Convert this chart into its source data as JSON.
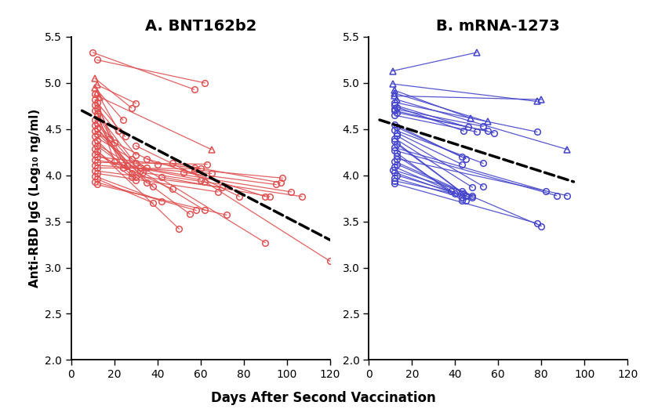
{
  "title_A": "A. BNT162b2",
  "title_B": "B. mRNA-1273",
  "xlabel": "Days After Second Vaccination",
  "ylabel": "Anti-RBD IgG (Log₁₀ ng/ml)",
  "xlim": [
    0,
    120
  ],
  "ylim": [
    2.0,
    5.5
  ],
  "yticks": [
    2.0,
    2.5,
    3.0,
    3.5,
    4.0,
    4.5,
    5.0,
    5.5
  ],
  "xticks": [
    0,
    20,
    40,
    60,
    80,
    100,
    120
  ],
  "color_A": "#E05050",
  "color_B": "#4444CC",
  "dashed_color": "black",
  "panel_A_subjects": [
    {
      "x": [
        10,
        57
      ],
      "y": [
        5.33,
        4.93
      ],
      "m1": "o",
      "m2": "o"
    },
    {
      "x": [
        12,
        62
      ],
      "y": [
        5.25,
        5.0
      ],
      "m1": "o",
      "m2": "o"
    },
    {
      "x": [
        11,
        28
      ],
      "y": [
        5.05,
        4.73
      ],
      "m1": "^",
      "m2": "o"
    },
    {
      "x": [
        12,
        30
      ],
      "y": [
        4.98,
        4.78
      ],
      "m1": "^",
      "m2": "o"
    },
    {
      "x": [
        11,
        24
      ],
      "y": [
        4.95,
        4.6
      ],
      "m1": "^",
      "m2": "o"
    },
    {
      "x": [
        12,
        22
      ],
      "y": [
        4.9,
        4.48
      ],
      "m1": "^",
      "m2": "o"
    },
    {
      "x": [
        11,
        18
      ],
      "y": [
        4.88,
        4.4
      ],
      "m1": "o",
      "m2": "o"
    },
    {
      "x": [
        13,
        65
      ],
      "y": [
        4.85,
        4.28
      ],
      "m1": "^",
      "m2": "^"
    },
    {
      "x": [
        11,
        20
      ],
      "y": [
        4.82,
        4.35
      ],
      "m1": "o",
      "m2": "o"
    },
    {
      "x": [
        12,
        25
      ],
      "y": [
        4.79,
        4.42
      ],
      "m1": "o",
      "m2": "o"
    },
    {
      "x": [
        11,
        20
      ],
      "y": [
        4.76,
        4.15
      ],
      "m1": "o",
      "m2": "o"
    },
    {
      "x": [
        12,
        30
      ],
      "y": [
        4.73,
        4.22
      ],
      "m1": "o",
      "m2": "o"
    },
    {
      "x": [
        11,
        28
      ],
      "y": [
        4.7,
        4.18
      ],
      "m1": "o",
      "m2": "o"
    },
    {
      "x": [
        12,
        26
      ],
      "y": [
        4.67,
        4.1
      ],
      "m1": "o",
      "m2": "o"
    },
    {
      "x": [
        12,
        24
      ],
      "y": [
        4.64,
        4.08
      ],
      "m1": "o",
      "m2": "o"
    },
    {
      "x": [
        11,
        32
      ],
      "y": [
        4.6,
        4.05
      ],
      "m1": "o",
      "m2": "o"
    },
    {
      "x": [
        12,
        28
      ],
      "y": [
        4.57,
        4.02
      ],
      "m1": "o",
      "m2": "o"
    },
    {
      "x": [
        11,
        30
      ],
      "y": [
        4.54,
        3.98
      ],
      "m1": "o",
      "m2": "o"
    },
    {
      "x": [
        12,
        35
      ],
      "y": [
        4.51,
        3.92
      ],
      "m1": "o",
      "m2": "o"
    },
    {
      "x": [
        11,
        38
      ],
      "y": [
        4.48,
        3.88
      ],
      "m1": "o",
      "m2": "o"
    },
    {
      "x": [
        12,
        40
      ],
      "y": [
        4.45,
        4.12
      ],
      "m1": "o",
      "m2": "o"
    },
    {
      "x": [
        11,
        35
      ],
      "y": [
        4.42,
        4.08
      ],
      "m1": "o",
      "m2": "o"
    },
    {
      "x": [
        12,
        30
      ],
      "y": [
        4.38,
        3.95
      ],
      "m1": "o",
      "m2": "o"
    },
    {
      "x": [
        11,
        62
      ],
      "y": [
        4.35,
        3.62
      ],
      "m1": "o",
      "m2": "o"
    },
    {
      "x": [
        12,
        55
      ],
      "y": [
        4.32,
        3.58
      ],
      "m1": "o",
      "m2": "o"
    },
    {
      "x": [
        11,
        50
      ],
      "y": [
        4.29,
        3.42
      ],
      "m1": "o",
      "m2": "o"
    },
    {
      "x": [
        12,
        28
      ],
      "y": [
        4.26,
        3.98
      ],
      "m1": "o",
      "m2": "o"
    },
    {
      "x": [
        11,
        47
      ],
      "y": [
        4.23,
        3.85
      ],
      "m1": "o",
      "m2": "o"
    },
    {
      "x": [
        12,
        57
      ],
      "y": [
        4.2,
        4.08
      ],
      "m1": "o",
      "m2": "o"
    },
    {
      "x": [
        11,
        60
      ],
      "y": [
        4.17,
        3.95
      ],
      "m1": "o",
      "m2": "o"
    },
    {
      "x": [
        12,
        63
      ],
      "y": [
        4.14,
        4.12
      ],
      "m1": "o",
      "m2": "o"
    },
    {
      "x": [
        11,
        65
      ],
      "y": [
        4.11,
        4.02
      ],
      "m1": "o",
      "m2": "o"
    },
    {
      "x": [
        12,
        60
      ],
      "y": [
        4.08,
        4.07
      ],
      "m1": "o",
      "m2": "o"
    },
    {
      "x": [
        11,
        70
      ],
      "y": [
        4.05,
        3.87
      ],
      "m1": "o",
      "m2": "o"
    },
    {
      "x": [
        12,
        68
      ],
      "y": [
        4.02,
        3.82
      ],
      "m1": "o",
      "m2": "o"
    },
    {
      "x": [
        11,
        42
      ],
      "y": [
        3.99,
        3.72
      ],
      "m1": "o",
      "m2": "o"
    },
    {
      "x": [
        12,
        38
      ],
      "y": [
        3.96,
        3.7
      ],
      "m1": "o",
      "m2": "o"
    },
    {
      "x": [
        11,
        58
      ],
      "y": [
        3.93,
        3.62
      ],
      "m1": "o",
      "m2": "o"
    },
    {
      "x": [
        12,
        72
      ],
      "y": [
        3.9,
        3.57
      ],
      "m1": "o",
      "m2": "o"
    },
    {
      "x": [
        30,
        78
      ],
      "y": [
        4.32,
        3.77
      ],
      "m1": "o",
      "m2": "o"
    },
    {
      "x": [
        35,
        90
      ],
      "y": [
        4.18,
        3.77
      ],
      "m1": "o",
      "m2": "o"
    },
    {
      "x": [
        32,
        102
      ],
      "y": [
        4.08,
        3.82
      ],
      "m1": "o",
      "m2": "o"
    },
    {
      "x": [
        33,
        107
      ],
      "y": [
        4.03,
        3.77
      ],
      "m1": "o",
      "m2": "o"
    },
    {
      "x": [
        42,
        92
      ],
      "y": [
        3.98,
        3.77
      ],
      "m1": "o",
      "m2": "o"
    },
    {
      "x": [
        47,
        97
      ],
      "y": [
        4.13,
        3.92
      ],
      "m1": "o",
      "m2": "o"
    },
    {
      "x": [
        52,
        95
      ],
      "y": [
        4.03,
        3.9
      ],
      "m1": "o",
      "m2": "o"
    },
    {
      "x": [
        57,
        98
      ],
      "y": [
        4.06,
        3.97
      ],
      "m1": "o",
      "m2": "o"
    },
    {
      "x": [
        30,
        90
      ],
      "y": [
        4.13,
        3.27
      ],
      "m1": "o",
      "m2": "o"
    },
    {
      "x": [
        62,
        120
      ],
      "y": [
        3.93,
        3.07
      ],
      "m1": "o",
      "m2": "o"
    }
  ],
  "panel_A_dashed": {
    "x": [
      5,
      120
    ],
    "y": [
      4.7,
      3.3
    ]
  },
  "panel_B_subjects": [
    {
      "x": [
        11,
        50
      ],
      "y": [
        5.13,
        5.33
      ],
      "m1": "^",
      "m2": "^"
    },
    {
      "x": [
        11,
        78
      ],
      "y": [
        4.99,
        4.8
      ],
      "m1": "^",
      "m2": "^"
    },
    {
      "x": [
        12,
        47
      ],
      "y": [
        4.92,
        4.62
      ],
      "m1": "^",
      "m2": "^"
    },
    {
      "x": [
        12,
        55
      ],
      "y": [
        4.89,
        4.58
      ],
      "m1": "^",
      "m2": "^"
    },
    {
      "x": [
        12,
        80
      ],
      "y": [
        4.86,
        4.82
      ],
      "m1": "^",
      "m2": "^"
    },
    {
      "x": [
        13,
        92
      ],
      "y": [
        4.82,
        4.28
      ],
      "m1": "^",
      "m2": "^"
    },
    {
      "x": [
        12,
        78
      ],
      "y": [
        4.79,
        4.47
      ],
      "m1": "o",
      "m2": "o"
    },
    {
      "x": [
        12,
        46
      ],
      "y": [
        4.76,
        4.52
      ],
      "m1": "o",
      "m2": "o"
    },
    {
      "x": [
        13,
        44
      ],
      "y": [
        4.74,
        4.48
      ],
      "m1": "o",
      "m2": "o"
    },
    {
      "x": [
        12,
        53
      ],
      "y": [
        4.72,
        4.53
      ],
      "m1": "o",
      "m2": "o"
    },
    {
      "x": [
        12,
        58
      ],
      "y": [
        4.7,
        4.46
      ],
      "m1": "o",
      "m2": "o"
    },
    {
      "x": [
        13,
        55
      ],
      "y": [
        4.68,
        4.48
      ],
      "m1": "o",
      "m2": "o"
    },
    {
      "x": [
        12,
        50
      ],
      "y": [
        4.65,
        4.47
      ],
      "m1": "o",
      "m2": "o"
    },
    {
      "x": [
        12,
        43
      ],
      "y": [
        4.55,
        4.2
      ],
      "m1": "o",
      "m2": "o"
    },
    {
      "x": [
        13,
        45
      ],
      "y": [
        4.52,
        4.18
      ],
      "m1": "o",
      "m2": "o"
    },
    {
      "x": [
        12,
        53
      ],
      "y": [
        4.49,
        4.13
      ],
      "m1": "o",
      "m2": "o"
    },
    {
      "x": [
        13,
        43
      ],
      "y": [
        4.46,
        4.12
      ],
      "m1": "o",
      "m2": "o"
    },
    {
      "x": [
        13,
        53
      ],
      "y": [
        4.43,
        3.88
      ],
      "m1": "o",
      "m2": "o"
    },
    {
      "x": [
        12,
        48
      ],
      "y": [
        4.4,
        3.87
      ],
      "m1": "o",
      "m2": "o"
    },
    {
      "x": [
        12,
        44
      ],
      "y": [
        4.37,
        3.8
      ],
      "m1": "o",
      "m2": "o"
    },
    {
      "x": [
        13,
        45
      ],
      "y": [
        4.34,
        3.78
      ],
      "m1": "o",
      "m2": "o"
    },
    {
      "x": [
        12,
        82
      ],
      "y": [
        4.3,
        3.83
      ],
      "m1": "o",
      "m2": "o"
    },
    {
      "x": [
        12,
        87
      ],
      "y": [
        4.27,
        3.78
      ],
      "m1": "o",
      "m2": "o"
    },
    {
      "x": [
        13,
        43
      ],
      "y": [
        4.24,
        3.73
      ],
      "m1": "o",
      "m2": "o"
    },
    {
      "x": [
        13,
        45
      ],
      "y": [
        4.21,
        3.73
      ],
      "m1": "o",
      "m2": "o"
    },
    {
      "x": [
        13,
        92
      ],
      "y": [
        4.18,
        3.78
      ],
      "m1": "o",
      "m2": "o"
    },
    {
      "x": [
        12,
        48
      ],
      "y": [
        4.15,
        3.78
      ],
      "m1": "o",
      "m2": "o"
    },
    {
      "x": [
        13,
        80
      ],
      "y": [
        4.12,
        3.45
      ],
      "m1": "o",
      "m2": "o"
    },
    {
      "x": [
        12,
        38
      ],
      "y": [
        4.09,
        3.83
      ],
      "m1": "o",
      "m2": "o"
    },
    {
      "x": [
        11,
        43
      ],
      "y": [
        4.06,
        3.83
      ],
      "m1": "o",
      "m2": "o"
    },
    {
      "x": [
        12,
        40
      ],
      "y": [
        4.03,
        3.8
      ],
      "m1": "o",
      "m2": "o"
    },
    {
      "x": [
        13,
        45
      ],
      "y": [
        4.0,
        3.78
      ],
      "m1": "o",
      "m2": "o"
    },
    {
      "x": [
        12,
        43
      ],
      "y": [
        3.97,
        3.76
      ],
      "m1": "o",
      "m2": "o"
    },
    {
      "x": [
        12,
        48
      ],
      "y": [
        3.94,
        3.76
      ],
      "m1": "o",
      "m2": "o"
    },
    {
      "x": [
        12,
        78
      ],
      "y": [
        3.91,
        3.48
      ],
      "m1": "o",
      "m2": "o"
    }
  ],
  "panel_B_dashed": {
    "x": [
      5,
      95
    ],
    "y": [
      4.6,
      3.93
    ]
  }
}
